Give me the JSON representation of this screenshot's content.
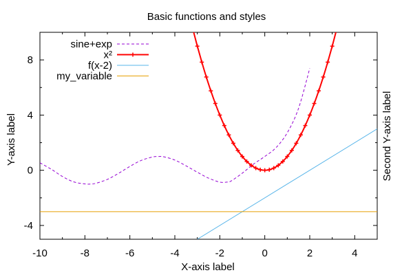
{
  "chart_data": {
    "type": "line",
    "title": "Basic functions and styles",
    "xlabel": "X-axis label",
    "ylabel": "Y-axis label",
    "y2label": "Second Y-axis label",
    "xlim": [
      -10,
      5
    ],
    "ylim": [
      -5,
      10
    ],
    "xticks": [
      -10,
      -8,
      -6,
      -4,
      -2,
      0,
      2,
      4
    ],
    "xtick_labels": [
      "-10",
      "-8",
      "-6",
      "-4",
      "-2",
      "0",
      "2",
      "4"
    ],
    "yticks": [
      -4,
      0,
      4,
      8
    ],
    "ytick_labels": [
      "-4",
      "0",
      "4",
      "8"
    ],
    "legend_position": "top-left",
    "grid": false,
    "series": [
      {
        "name": "sine+exp",
        "color": "#9400d3",
        "style": "dashed",
        "x": [
          -10,
          -9.5,
          -9,
          -8.5,
          -8,
          -7.75,
          -7.5,
          -7,
          -6.5,
          -6,
          -5.5,
          -5,
          -4.7,
          -4.5,
          -4,
          -3.5,
          -3,
          -2.5,
          -2,
          -1.7,
          -1.5,
          -1,
          -0.5,
          0,
          0.5,
          1,
          1.5,
          2
        ],
        "y": [
          0.54,
          0.08,
          -0.45,
          -0.84,
          -0.99,
          -1.0,
          -0.94,
          -0.66,
          -0.22,
          0.28,
          0.71,
          0.96,
          1.0,
          0.98,
          0.74,
          0.32,
          -0.14,
          -0.57,
          -0.86,
          -0.86,
          -0.78,
          -0.21,
          0.45,
          1.0,
          1.64,
          2.72,
          4.48,
          7.39
        ]
      },
      {
        "name": "x²",
        "color": "#ff0000",
        "style": "solid-points",
        "x": [
          -3.2,
          -3.0,
          -2.8,
          -2.6,
          -2.4,
          -2.2,
          -2.0,
          -1.8,
          -1.6,
          -1.4,
          -1.2,
          -1.0,
          -0.8,
          -0.6,
          -0.4,
          -0.2,
          0,
          0.2,
          0.4,
          0.6,
          0.8,
          1.0,
          1.2,
          1.4,
          1.6,
          1.8,
          2.0,
          2.2,
          2.4,
          2.6,
          2.8,
          3.0,
          3.2
        ],
        "y": [
          10.24,
          9.0,
          7.84,
          6.76,
          5.76,
          4.84,
          4.0,
          3.24,
          2.56,
          1.96,
          1.44,
          1.0,
          0.64,
          0.36,
          0.16,
          0.04,
          0,
          0.04,
          0.16,
          0.36,
          0.64,
          1.0,
          1.44,
          1.96,
          2.56,
          3.24,
          4.0,
          4.84,
          5.76,
          6.76,
          7.84,
          9.0,
          10.24
        ]
      },
      {
        "name": "f(x-2)",
        "color": "#56b4e9",
        "style": "solid",
        "x": [
          -3.0,
          5
        ],
        "y": [
          -5.0,
          3.0
        ]
      },
      {
        "name": "my_variable",
        "color": "#e69f00",
        "style": "solid",
        "x": [
          -10,
          5
        ],
        "y": [
          -3,
          -3
        ]
      }
    ]
  }
}
